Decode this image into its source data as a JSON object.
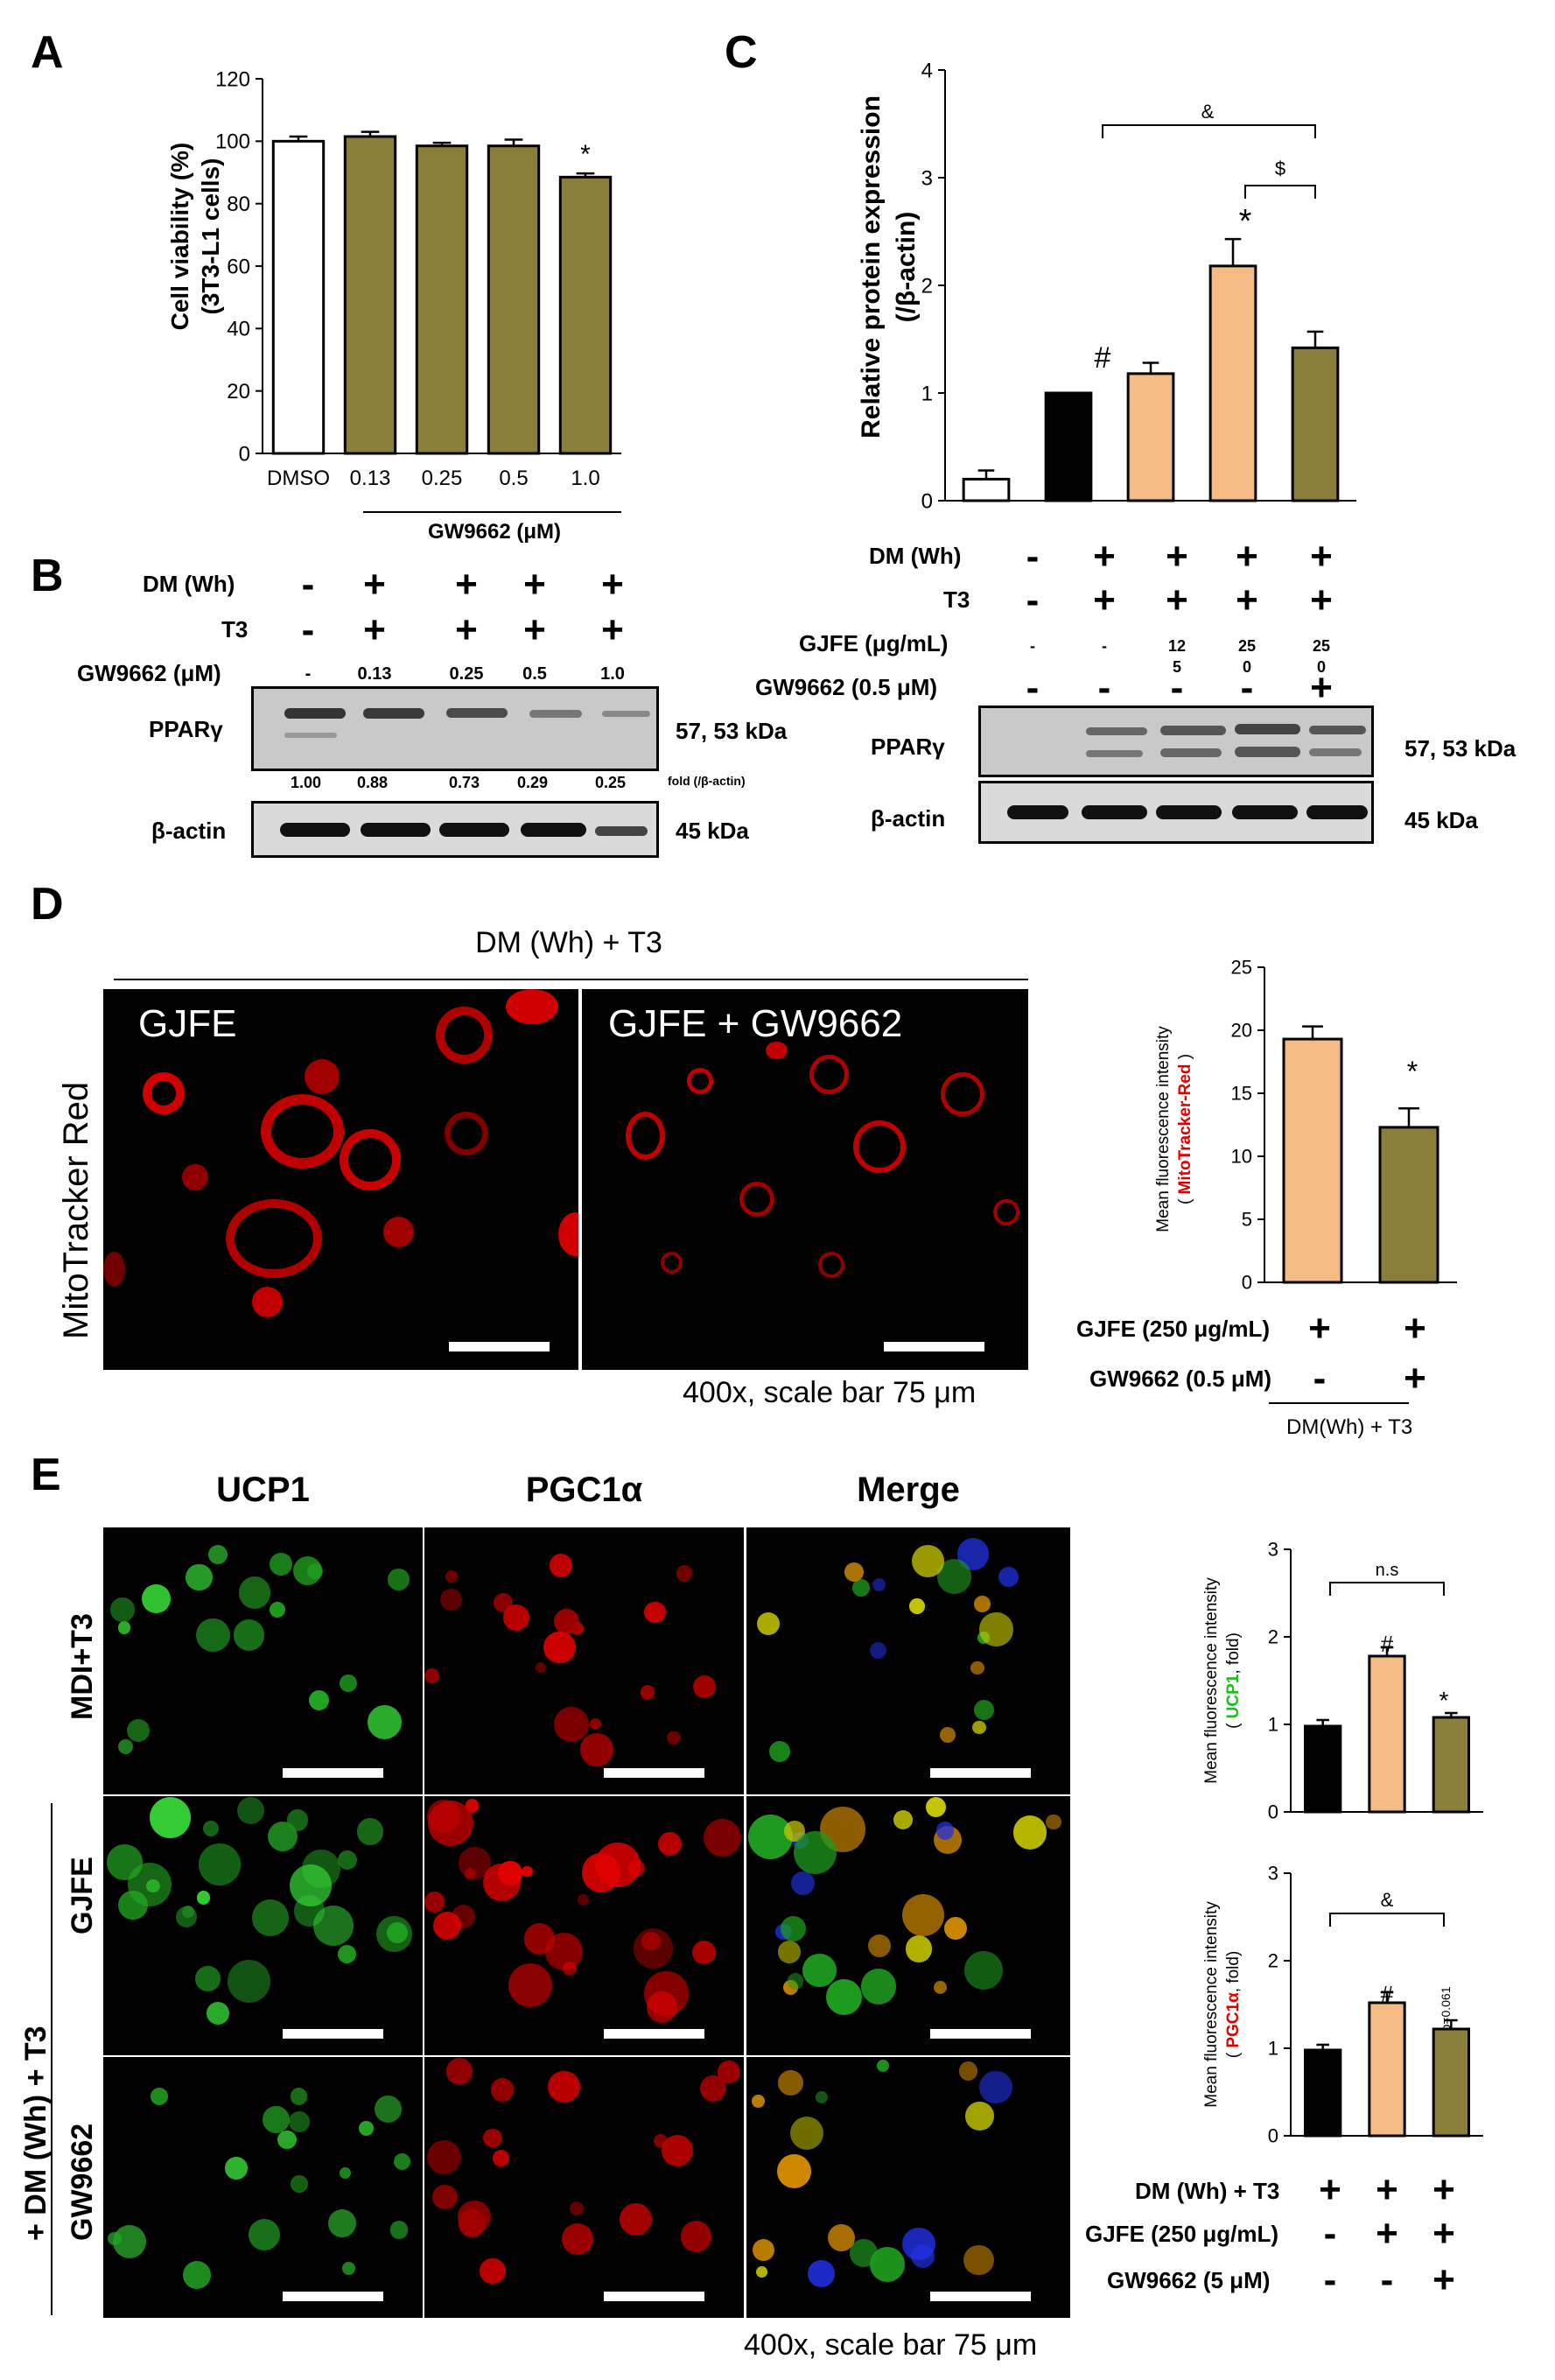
{
  "colors": {
    "white_bar": "#ffffff",
    "olive": "#8b7d3a",
    "peach": "#f4bb84",
    "black": "#000000"
  },
  "panels": {
    "A": "A",
    "B": "B",
    "C": "C",
    "D": "D",
    "E": "E"
  },
  "panel_a": {
    "ylabel_1": "Cell viability (%)",
    "ylabel_2": "(3T3-L1 cells)",
    "group_label": "GW9662 (μM)",
    "star": "*"
  },
  "panel_b": {
    "rows": {
      "dm_label": "DM (Wh)",
      "t3_label": "T3",
      "gw_label": "GW9662 (μM)",
      "dm": [
        "-",
        "+",
        "+",
        "+",
        "+"
      ],
      "t3": [
        "-",
        "+",
        "+",
        "+",
        "+"
      ],
      "gw": [
        "-",
        "0.13",
        "0.25",
        "0.5",
        "1.0"
      ]
    },
    "ppar_label": "PPARγ",
    "ppar_kda": "57, 53 kDa",
    "folds": [
      "1.00",
      "0.88",
      "0.73",
      "0.29",
      "0.25"
    ],
    "fold_note": "fold (/β-actin)",
    "actin_label": "β-actin",
    "actin_kda": "45 kDa"
  },
  "panel_c": {
    "ylabel_1": "Relative protein expression",
    "ylabel_2": "(/β-actin)",
    "marks": {
      "amp": "&",
      "dollar": "$",
      "star": "*",
      "hash": "#"
    },
    "rows": {
      "dm_label": "DM (Wh)",
      "t3_label": "T3",
      "gjfe_label": "GJFE (μg/mL)",
      "gw_label": "GW9662 (0.5 μM)",
      "dm": [
        "-",
        "+",
        "+",
        "+",
        "+"
      ],
      "t3": [
        "-",
        "+",
        "+",
        "+",
        "+"
      ],
      "gjfe_top": [
        "-",
        "-",
        "12",
        "25",
        "25"
      ],
      "gjfe_bottom": [
        "",
        "",
        "5",
        "0",
        "0"
      ],
      "gw": [
        "-",
        "-",
        "-",
        "-",
        "+"
      ]
    },
    "ppar_label": "PPARγ",
    "ppar_kda": "57, 53 kDa",
    "actin_label": "β-actin",
    "actin_kda": "45 kDa"
  },
  "panel_d": {
    "header": "DM (Wh) + T3",
    "stain_label": "MitoTracker Red",
    "img1_label": "GJFE",
    "img2_label": "GJFE + GW9662",
    "caption": "400x, scale bar 75 μm",
    "ylabel_1": "Mean fluorescence intensity",
    "ylabel_2a": "( ",
    "ylabel_2b": "MitoTracker-Red",
    "ylabel_2c": " )",
    "star": "*",
    "rows": {
      "gjfe_label": "GJFE (250 μg/mL)",
      "gw_label": "GW9662 (0.5 μM)",
      "gjfe": [
        "+",
        "+"
      ],
      "gw": [
        "-",
        "+"
      ],
      "group": "DM(Wh) + T3"
    }
  },
  "panel_e": {
    "col1": "UCP1",
    "col2": "PGC1α",
    "col3": "Merge",
    "row1": "MDI+T3",
    "row2": "GJFE",
    "row3": "GW9662",
    "row_group": "+ DM (Wh) + T3",
    "caption": "400x, scale bar 75 μm",
    "ucp_ylabel_1": "Mean fluorescence intensity",
    "ucp_ylabel_2a": "( ",
    "ucp_ylabel_2b": "UCP1",
    "ucp_ylabel_2c": ", fold)",
    "pgc_ylabel_1": "Mean fluorescence intensity",
    "pgc_ylabel_2a": "( ",
    "pgc_ylabel_2b": "PGC1α",
    "pgc_ylabel_2c": ", fold)",
    "ns": "n.s",
    "amp": "&",
    "hash": "#",
    "star": "*",
    "pval": "p=0.061",
    "rows": {
      "dm_label": "DM (Wh) + T3",
      "gjfe_label": "GJFE (250 μg/mL)",
      "gw_label": "GW9662 (5 μM)",
      "dm": [
        "+",
        "+",
        "+"
      ],
      "gjfe": [
        "-",
        "+",
        "+"
      ],
      "gw": [
        "-",
        "-",
        "+"
      ]
    }
  },
  "chart_data": [
    {
      "id": "A",
      "type": "bar",
      "categories": [
        "DMSO",
        "0.13",
        "0.25",
        "0.5",
        "1.0"
      ],
      "values": [
        100,
        101.5,
        98.5,
        98.5,
        88.5
      ],
      "errors": [
        1.5,
        1.5,
        1.0,
        2.0,
        1.2
      ],
      "colors": [
        "#ffffff",
        "#8b7d3a",
        "#8b7d3a",
        "#8b7d3a",
        "#8b7d3a"
      ],
      "ylim": [
        0,
        120
      ],
      "yticks": [
        0,
        20,
        40,
        60,
        80,
        100,
        120
      ],
      "ylabel": "Cell viability (%) (3T3-L1 cells)",
      "xlabel": "GW9662 (μM)"
    },
    {
      "id": "C",
      "type": "bar",
      "categories": [
        "1",
        "2",
        "3",
        "4",
        "5"
      ],
      "values": [
        0.2,
        1.0,
        1.18,
        2.18,
        1.42
      ],
      "errors": [
        0.08,
        0,
        0.1,
        0.25,
        0.15
      ],
      "colors": [
        "#ffffff",
        "#000000",
        "#f4bb84",
        "#f4bb84",
        "#8b7d3a"
      ],
      "ylim": [
        0,
        4
      ],
      "yticks": [
        0,
        1,
        2,
        3,
        4
      ],
      "ylabel": "Relative protein expression (/β-actin)"
    },
    {
      "id": "D",
      "type": "bar",
      "categories": [
        "GJFE",
        "GJFE + GW9662"
      ],
      "values": [
        19.3,
        12.3
      ],
      "errors": [
        1.0,
        1.5
      ],
      "colors": [
        "#f4bb84",
        "#8b7d3a"
      ],
      "ylim": [
        0,
        25
      ],
      "yticks": [
        0,
        5,
        10,
        15,
        20,
        25
      ],
      "ylabel": "Mean fluorescence intensity (MitoTracker-Red)"
    },
    {
      "id": "E-UCP1",
      "type": "bar",
      "categories": [
        "MDI+T3",
        "GJFE",
        "GW9662"
      ],
      "values": [
        0.98,
        1.78,
        1.08
      ],
      "errors": [
        0.07,
        0.1,
        0.05
      ],
      "colors": [
        "#000000",
        "#f4bb84",
        "#8b7d3a"
      ],
      "ylim": [
        0,
        3
      ],
      "yticks": [
        0,
        1,
        2,
        3
      ],
      "ylabel": "Mean fluorescence intensity (UCP1, fold)"
    },
    {
      "id": "E-PGC1a",
      "type": "bar",
      "categories": [
        "MDI+T3",
        "GJFE",
        "GW9662"
      ],
      "values": [
        0.98,
        1.52,
        1.22
      ],
      "errors": [
        0.06,
        0.12,
        0.1
      ],
      "colors": [
        "#000000",
        "#f4bb84",
        "#8b7d3a"
      ],
      "ylim": [
        0,
        3
      ],
      "yticks": [
        0,
        1,
        2,
        3
      ],
      "ylabel": "Mean fluorescence intensity (PGC1α, fold)"
    }
  ]
}
